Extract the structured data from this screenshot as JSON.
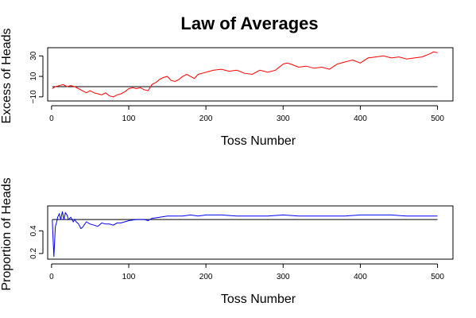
{
  "figure": {
    "title": "Law of Averages"
  },
  "chart_data": [
    {
      "type": "line",
      "xlabel": "Toss Number",
      "ylabel": "Excess of Heads",
      "xlim": [
        -5,
        520
      ],
      "ylim": [
        -14,
        38
      ],
      "x_ticks": [
        0,
        100,
        200,
        300,
        400,
        500
      ],
      "y_ticks": [
        -10,
        10,
        30
      ],
      "y_tick_labels": [
        "−10",
        "10",
        "30"
      ],
      "reference_line": 0,
      "grid": false,
      "legend": "none",
      "series": [
        {
          "color": "#ff0000",
          "x": [
            1,
            5,
            10,
            15,
            20,
            25,
            30,
            35,
            40,
            45,
            50,
            55,
            60,
            65,
            70,
            75,
            80,
            85,
            90,
            95,
            100,
            105,
            110,
            115,
            120,
            125,
            130,
            135,
            140,
            145,
            150,
            155,
            160,
            165,
            170,
            175,
            180,
            185,
            190,
            195,
            200,
            210,
            220,
            230,
            240,
            250,
            260,
            270,
            280,
            290,
            300,
            305,
            310,
            320,
            330,
            340,
            350,
            360,
            370,
            380,
            390,
            400,
            410,
            420,
            430,
            440,
            450,
            460,
            470,
            480,
            490,
            495,
            500
          ],
          "values": [
            -2,
            0,
            1,
            2,
            0,
            1,
            0,
            -2,
            -4,
            -6,
            -4,
            -6,
            -7,
            -8,
            -6,
            -9,
            -10,
            -8,
            -7,
            -5,
            -2,
            -1,
            -2,
            -1,
            -3,
            -4,
            2,
            4,
            7,
            9,
            10,
            6,
            5,
            7,
            10,
            12,
            10,
            8,
            12,
            13,
            14,
            16,
            17,
            15,
            16,
            13,
            12,
            16,
            14,
            16,
            22,
            23,
            22,
            19,
            20,
            18,
            19,
            17,
            22,
            24,
            26,
            23,
            28,
            29,
            30,
            28,
            29,
            27,
            28,
            29,
            32,
            34,
            33
          ]
        }
      ]
    },
    {
      "type": "line",
      "xlabel": "Toss Number",
      "ylabel": "Proportion of Heads",
      "xlim": [
        -5,
        520
      ],
      "ylim": [
        0.15,
        0.62
      ],
      "x_ticks": [
        0,
        100,
        200,
        300,
        400,
        500
      ],
      "y_ticks": [
        0.2,
        0.4
      ],
      "y_tick_labels": [
        "0.2",
        "0.4"
      ],
      "reference_line": 0.5,
      "grid": false,
      "legend": "none",
      "series": [
        {
          "color": "#0000ff",
          "x": [
            1,
            2,
            3,
            4,
            5,
            6,
            8,
            10,
            12,
            14,
            16,
            18,
            20,
            22,
            25,
            28,
            30,
            32,
            35,
            38,
            40,
            45,
            50,
            55,
            60,
            65,
            70,
            75,
            80,
            85,
            90,
            95,
            100,
            110,
            120,
            125,
            130,
            140,
            150,
            160,
            170,
            180,
            190,
            200,
            220,
            240,
            260,
            280,
            300,
            320,
            340,
            360,
            380,
            400,
            420,
            440,
            460,
            480,
            500
          ],
          "values": [
            0.5,
            0.33,
            0.17,
            0.3,
            0.44,
            0.46,
            0.52,
            0.55,
            0.5,
            0.57,
            0.5,
            0.56,
            0.54,
            0.5,
            0.52,
            0.48,
            0.5,
            0.48,
            0.46,
            0.42,
            0.43,
            0.48,
            0.46,
            0.45,
            0.44,
            0.47,
            0.46,
            0.46,
            0.45,
            0.47,
            0.47,
            0.48,
            0.49,
            0.5,
            0.5,
            0.49,
            0.51,
            0.52,
            0.53,
            0.53,
            0.53,
            0.54,
            0.53,
            0.54,
            0.54,
            0.53,
            0.53,
            0.53,
            0.54,
            0.53,
            0.53,
            0.53,
            0.53,
            0.54,
            0.54,
            0.54,
            0.53,
            0.53,
            0.53
          ]
        }
      ]
    }
  ]
}
